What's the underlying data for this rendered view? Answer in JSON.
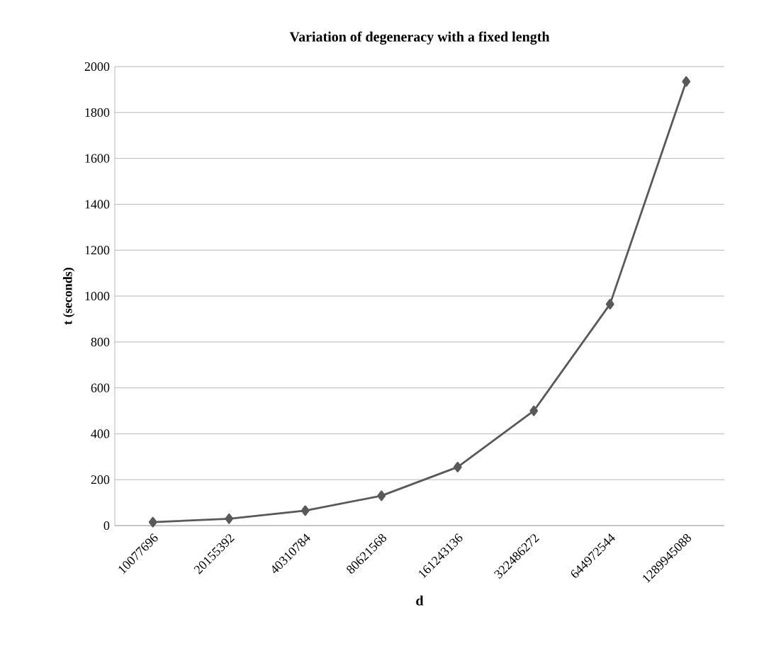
{
  "chart_data": {
    "type": "line",
    "title": "Variation of degeneracy with a fixed length",
    "xlabel": "d",
    "ylabel": "t (seconds)",
    "categories": [
      "10077696",
      "20155392",
      "40310784",
      "80621568",
      "161243136",
      "322486272",
      "644972544",
      "1289945088"
    ],
    "series": [
      {
        "color": "#595959",
        "values": [
          15,
          30,
          65,
          130,
          255,
          500,
          965,
          1935
        ]
      }
    ],
    "ylim": [
      0,
      2000
    ],
    "yticks": [
      0,
      200,
      400,
      600,
      800,
      1000,
      1200,
      1400,
      1600,
      1800,
      2000
    ],
    "grid": "y",
    "marker": "diamond",
    "line_style": "solid"
  }
}
